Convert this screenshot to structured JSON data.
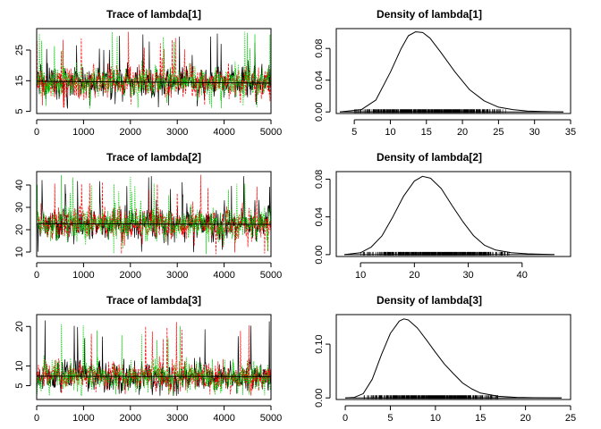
{
  "chart_data": [
    {
      "type": "line",
      "title": "Trace of lambda[1]",
      "xlabel": "",
      "ylabel": "",
      "xlim": [
        0,
        5000
      ],
      "ylim": [
        4.3,
        32
      ],
      "xticks": [
        0,
        1000,
        2000,
        3000,
        4000,
        5000
      ],
      "xtick_labels": [
        "0",
        "1000",
        "2000",
        "3000",
        "4000",
        "5000"
      ],
      "yticks": [
        5,
        15,
        25
      ],
      "ytick_labels": [
        "5",
        "15",
        "25"
      ],
      "grid": false,
      "series": [
        {
          "color": "#000000",
          "center": 14.5,
          "spread": 3.5,
          "low": 6,
          "high": 31
        },
        {
          "color": "#ff0000",
          "center": 14.5,
          "spread": 3.5,
          "low": 6,
          "high": 31
        },
        {
          "color": "#00cd00",
          "center": 14.5,
          "spread": 3.5,
          "low": 6,
          "high": 31
        }
      ],
      "running_mean": {
        "x": [
          0,
          5000
        ],
        "y": [
          14.8,
          14.2
        ]
      }
    },
    {
      "type": "line",
      "title": "Density of lambda[1]",
      "xlabel": "",
      "ylabel": "",
      "xlim": [
        2.5,
        35
      ],
      "ylim": [
        -0.002,
        0.105
      ],
      "xticks": [
        5,
        10,
        15,
        20,
        25,
        30,
        35
      ],
      "xtick_labels": [
        "5",
        "10",
        "15",
        "20",
        "25",
        "30",
        "35"
      ],
      "yticks": [
        0.0,
        0.04,
        0.08
      ],
      "ytick_labels": [
        "0.00",
        "0.04",
        "0.08"
      ],
      "grid": false,
      "density": {
        "x": [
          3,
          6,
          8,
          10,
          11.5,
          12.5,
          13.5,
          14.5,
          15.5,
          17,
          19,
          21,
          23,
          25,
          27,
          29,
          31,
          34
        ],
        "y": [
          0,
          0.003,
          0.015,
          0.05,
          0.08,
          0.096,
          0.101,
          0.1,
          0.093,
          0.075,
          0.05,
          0.028,
          0.014,
          0.006,
          0.003,
          0.001,
          0.0005,
          0
        ]
      },
      "rug": {
        "from": 5,
        "to": 26
      }
    },
    {
      "type": "line",
      "title": "Trace of lambda[2]",
      "xlabel": "",
      "ylabel": "",
      "xlim": [
        0,
        5000
      ],
      "ylim": [
        8,
        46
      ],
      "xticks": [
        0,
        1000,
        2000,
        3000,
        4000,
        5000
      ],
      "xtick_labels": [
        "0",
        "1000",
        "2000",
        "3000",
        "4000",
        "5000"
      ],
      "yticks": [
        10,
        20,
        30,
        40
      ],
      "ytick_labels": [
        "10",
        "20",
        "30",
        "40"
      ],
      "grid": false,
      "series": [
        {
          "color": "#000000",
          "center": 22.5,
          "spread": 5,
          "low": 9,
          "high": 45
        },
        {
          "color": "#ff0000",
          "center": 22.5,
          "spread": 5,
          "low": 9,
          "high": 45
        },
        {
          "color": "#00cd00",
          "center": 22.5,
          "spread": 5,
          "low": 9,
          "high": 45
        }
      ],
      "running_mean": {
        "x": [
          0,
          5000
        ],
        "y": [
          22.7,
          22.4
        ]
      }
    },
    {
      "type": "line",
      "title": "Density of lambda[2]",
      "xlabel": "",
      "ylabel": "",
      "xlim": [
        5.5,
        49
      ],
      "ylim": [
        -0.002,
        0.088
      ],
      "xticks": [
        10,
        20,
        30,
        40
      ],
      "xtick_labels": [
        "10",
        "20",
        "30",
        "40"
      ],
      "yticks": [
        0.0,
        0.04,
        0.08
      ],
      "ytick_labels": [
        "0.00",
        "0.04",
        "0.08"
      ],
      "grid": false,
      "density": {
        "x": [
          7,
          10,
          12,
          14,
          16,
          18,
          20,
          21.5,
          23,
          25,
          27,
          29,
          31,
          33,
          35,
          38,
          41,
          46
        ],
        "y": [
          0,
          0.002,
          0.008,
          0.02,
          0.04,
          0.062,
          0.078,
          0.083,
          0.081,
          0.07,
          0.052,
          0.035,
          0.02,
          0.01,
          0.005,
          0.002,
          0.0008,
          0
        ]
      },
      "rug": {
        "from": 10,
        "to": 38
      }
    },
    {
      "type": "line",
      "title": "Trace of lambda[3]",
      "xlabel": "",
      "ylabel": "",
      "xlim": [
        0,
        5000
      ],
      "ylim": [
        1.5,
        23
      ],
      "xticks": [
        0,
        1000,
        2000,
        3000,
        4000,
        5000
      ],
      "xtick_labels": [
        "0",
        "1000",
        "2000",
        "3000",
        "4000",
        "5000"
      ],
      "yticks": [
        5,
        10,
        20
      ],
      "ytick_labels": [
        "5",
        "10",
        "20"
      ],
      "grid": false,
      "series": [
        {
          "color": "#000000",
          "center": 7.3,
          "spread": 2.6,
          "low": 2.5,
          "high": 22
        },
        {
          "color": "#ff0000",
          "center": 7.3,
          "spread": 2.6,
          "low": 2.5,
          "high": 22
        },
        {
          "color": "#00cd00",
          "center": 7.3,
          "spread": 2.6,
          "low": 2.5,
          "high": 22
        }
      ],
      "running_mean": {
        "x": [
          0,
          5000
        ],
        "y": [
          7.4,
          7.3
        ]
      }
    },
    {
      "type": "line",
      "title": "Density of lambda[3]",
      "xlabel": "",
      "ylabel": "",
      "xlim": [
        -1,
        25
      ],
      "ylim": [
        -0.003,
        0.155
      ],
      "xticks": [
        0,
        5,
        10,
        15,
        20,
        25
      ],
      "xtick_labels": [
        "0",
        "5",
        "10",
        "15",
        "20",
        "25"
      ],
      "yticks": [
        0.0,
        0.1
      ],
      "ytick_labels": [
        "0.00",
        "0.10"
      ],
      "grid": false,
      "density": {
        "x": [
          0,
          1,
          2,
          3,
          4,
          5,
          6,
          6.5,
          7,
          8,
          9,
          10,
          11,
          12,
          13,
          14,
          15,
          17,
          19,
          21,
          24
        ],
        "y": [
          0,
          0.001,
          0.008,
          0.035,
          0.08,
          0.12,
          0.143,
          0.147,
          0.145,
          0.13,
          0.108,
          0.085,
          0.063,
          0.045,
          0.028,
          0.017,
          0.009,
          0.003,
          0.001,
          0.0003,
          0
        ]
      },
      "rug": {
        "from": 2,
        "to": 17
      }
    }
  ]
}
